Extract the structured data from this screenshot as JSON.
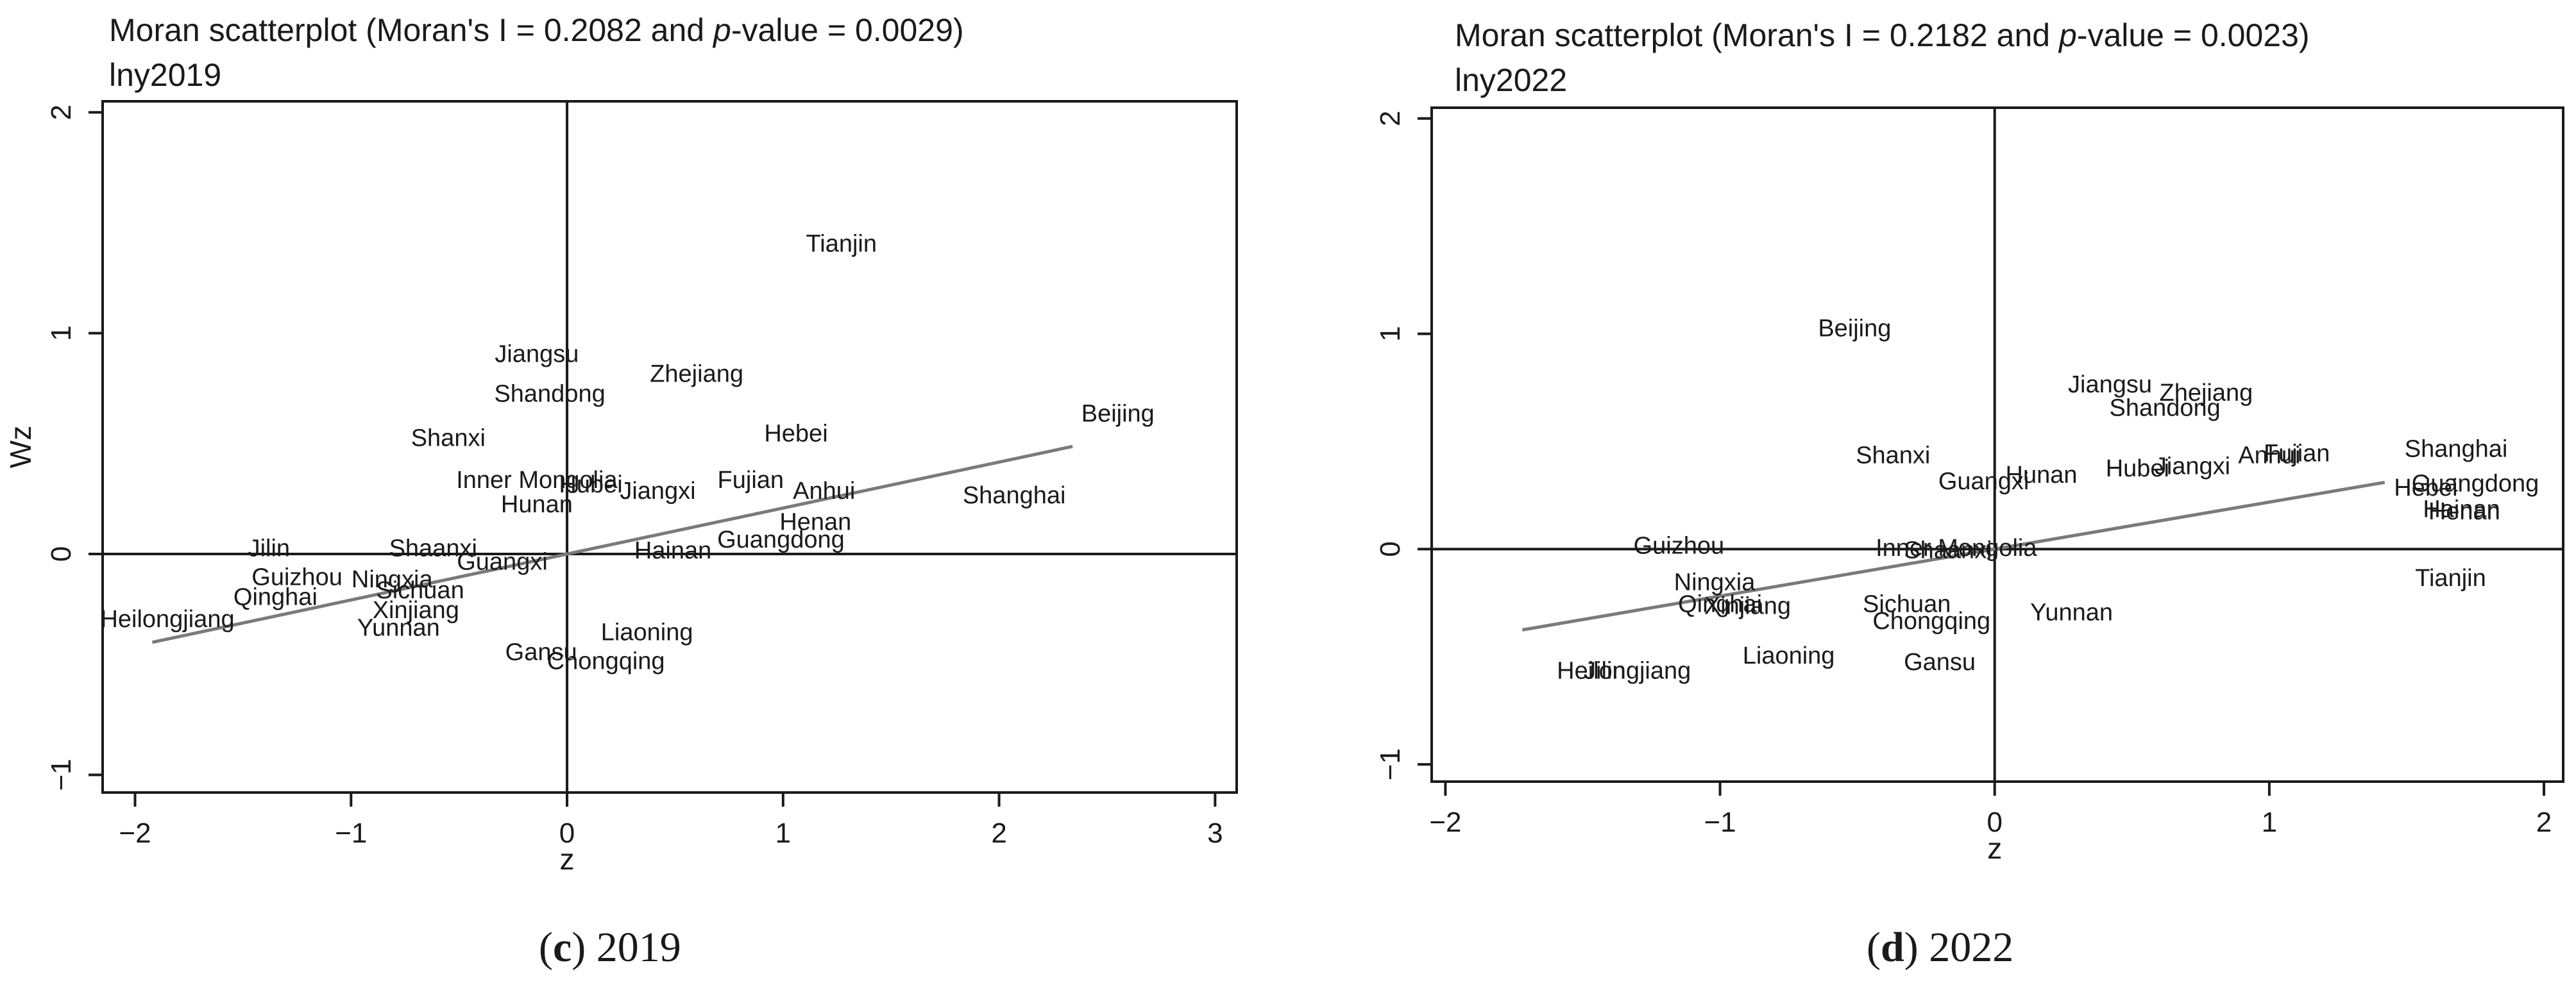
{
  "chart_data": [
    {
      "type": "scatter",
      "title": "Moran scatterplot (Moran's I = 0.2082 and p-value = 0.0029)",
      "title_parts": {
        "pre": "Moran scatterplot (Moran's I = 0.2082 and ",
        "italic": "p",
        "post": "-value = 0.0029)"
      },
      "subtitle": "lny2019",
      "xlabel": "z",
      "ylabel": "Wz",
      "xlim": [
        -2.15,
        3.1
      ],
      "ylim": [
        -1.08,
        2.05
      ],
      "xticks": [
        -2,
        -1,
        0,
        1,
        2,
        3
      ],
      "yticks": [
        -1,
        0,
        1,
        2
      ],
      "xtick_labels": [
        "−2",
        "−1",
        "0",
        "1",
        "2",
        "3"
      ],
      "ytick_labels": [
        "−1",
        "0",
        "1",
        "2"
      ],
      "fit_line": {
        "x": [
          -1.92,
          2.34
        ],
        "slope": 0.2082
      },
      "points": [
        {
          "label": "Tianjin",
          "x": 1.27,
          "y": 1.41
        },
        {
          "label": "Jiangsu",
          "x": -0.14,
          "y": 0.91
        },
        {
          "label": "Zhejiang",
          "x": 0.6,
          "y": 0.82
        },
        {
          "label": "Shandong",
          "x": -0.08,
          "y": 0.73
        },
        {
          "label": "Beijing",
          "x": 2.55,
          "y": 0.64
        },
        {
          "label": "Shanxi",
          "x": -0.55,
          "y": 0.53
        },
        {
          "label": "Hebei",
          "x": 1.06,
          "y": 0.55
        },
        {
          "label": "Inner Mongolia",
          "x": -0.14,
          "y": 0.34
        },
        {
          "label": "Fujian",
          "x": 0.85,
          "y": 0.34
        },
        {
          "label": "Hubei",
          "x": 0.11,
          "y": 0.32
        },
        {
          "label": "Jiangxi",
          "x": 0.42,
          "y": 0.29
        },
        {
          "label": "Anhui",
          "x": 1.19,
          "y": 0.29
        },
        {
          "label": "Shanghai",
          "x": 2.07,
          "y": 0.27
        },
        {
          "label": "Hunan",
          "x": -0.14,
          "y": 0.23
        },
        {
          "label": "Henan",
          "x": 1.15,
          "y": 0.15
        },
        {
          "label": "Guangdong",
          "x": 0.99,
          "y": 0.07
        },
        {
          "label": "Hainan",
          "x": 0.49,
          "y": 0.02
        },
        {
          "label": "Jilin",
          "x": -1.38,
          "y": 0.03
        },
        {
          "label": "Shaanxi",
          "x": -0.62,
          "y": 0.03
        },
        {
          "label": "Guangxi",
          "x": -0.3,
          "y": -0.03
        },
        {
          "label": "Guizhou",
          "x": -1.25,
          "y": -0.1
        },
        {
          "label": "Ningxia",
          "x": -0.81,
          "y": -0.11
        },
        {
          "label": "Sichuan",
          "x": -0.68,
          "y": -0.16
        },
        {
          "label": "Qinghai",
          "x": -1.35,
          "y": -0.19
        },
        {
          "label": "Xinjiang",
          "x": -0.7,
          "y": -0.25
        },
        {
          "label": "Heilongjiang",
          "x": -1.85,
          "y": -0.29
        },
        {
          "label": "Yunnan",
          "x": -0.78,
          "y": -0.33
        },
        {
          "label": "Liaoning",
          "x": 0.37,
          "y": -0.35
        },
        {
          "label": "Gansu",
          "x": -0.12,
          "y": -0.44
        },
        {
          "label": "Chongqing",
          "x": 0.18,
          "y": -0.48
        }
      ],
      "caption": {
        "letter": "c",
        "year": "2019"
      }
    },
    {
      "type": "scatter",
      "title": "Moran scatterplot (Moran's I = 0.2182 and p-value = 0.0023)",
      "title_parts": {
        "pre": "Moran scatterplot (Moran's I = 0.2182 and ",
        "italic": "p",
        "post": "-value = 0.0023)"
      },
      "subtitle": "lny2022",
      "xlabel": "z",
      "ylabel": "Wz",
      "xlim": [
        -2.05,
        2.07
      ],
      "ylim": [
        -1.08,
        2.05
      ],
      "xticks": [
        -2,
        -1,
        0,
        1,
        2
      ],
      "yticks": [
        -1,
        0,
        1,
        2
      ],
      "xtick_labels": [
        "−2",
        "−1",
        "0",
        "1",
        "2"
      ],
      "ytick_labels": [
        "−1",
        "0",
        "1",
        "2"
      ],
      "fit_line": {
        "x": [
          -1.72,
          1.42
        ],
        "slope": 0.2182
      },
      "points": [
        {
          "label": "Beijing",
          "x": -0.51,
          "y": 1.03
        },
        {
          "label": "Jiangsu",
          "x": 0.42,
          "y": 0.77
        },
        {
          "label": "Zhejiang",
          "x": 0.77,
          "y": 0.73
        },
        {
          "label": "Shandong",
          "x": 0.62,
          "y": 0.66
        },
        {
          "label": "Shanxi",
          "x": -0.37,
          "y": 0.44
        },
        {
          "label": "Shanghai",
          "x": 1.68,
          "y": 0.47
        },
        {
          "label": "Fujian",
          "x": 1.1,
          "y": 0.45
        },
        {
          "label": "Anhui",
          "x": 1.0,
          "y": 0.44
        },
        {
          "label": "Jiangxi",
          "x": 0.72,
          "y": 0.39
        },
        {
          "label": "Hubei",
          "x": 0.52,
          "y": 0.38
        },
        {
          "label": "Hunan",
          "x": 0.17,
          "y": 0.35
        },
        {
          "label": "Guangxi",
          "x": -0.04,
          "y": 0.32
        },
        {
          "label": "Guangdong",
          "x": 1.75,
          "y": 0.31
        },
        {
          "label": "Hebei",
          "x": 1.57,
          "y": 0.29
        },
        {
          "label": "Hainan",
          "x": 1.7,
          "y": 0.19
        },
        {
          "label": "Henan",
          "x": 1.71,
          "y": 0.18
        },
        {
          "label": "Guizhou",
          "x": -1.15,
          "y": 0.02
        },
        {
          "label": "Inner Mongolia",
          "x": -0.14,
          "y": 0.01
        },
        {
          "label": "Shaanxi",
          "x": -0.17,
          "y": 0.0
        },
        {
          "label": "Ningxia",
          "x": -1.02,
          "y": -0.15
        },
        {
          "label": "Qinghai",
          "x": -1.0,
          "y": -0.25
        },
        {
          "label": "Xinjiang",
          "x": -0.9,
          "y": -0.26
        },
        {
          "label": "Sichuan",
          "x": -0.32,
          "y": -0.25
        },
        {
          "label": "Chongqing",
          "x": -0.23,
          "y": -0.33
        },
        {
          "label": "Yunnan",
          "x": 0.28,
          "y": -0.29
        },
        {
          "label": "Tianjin",
          "x": 1.66,
          "y": -0.13
        },
        {
          "label": "Liaoning",
          "x": -0.75,
          "y": -0.49
        },
        {
          "label": "Gansu",
          "x": -0.2,
          "y": -0.52
        },
        {
          "label": "Heilongjiang",
          "x": -1.35,
          "y": -0.56
        },
        {
          "label": "Jilin",
          "x": -1.42,
          "y": -0.56
        }
      ],
      "caption": {
        "letter": "d",
        "year": "2022"
      }
    }
  ]
}
